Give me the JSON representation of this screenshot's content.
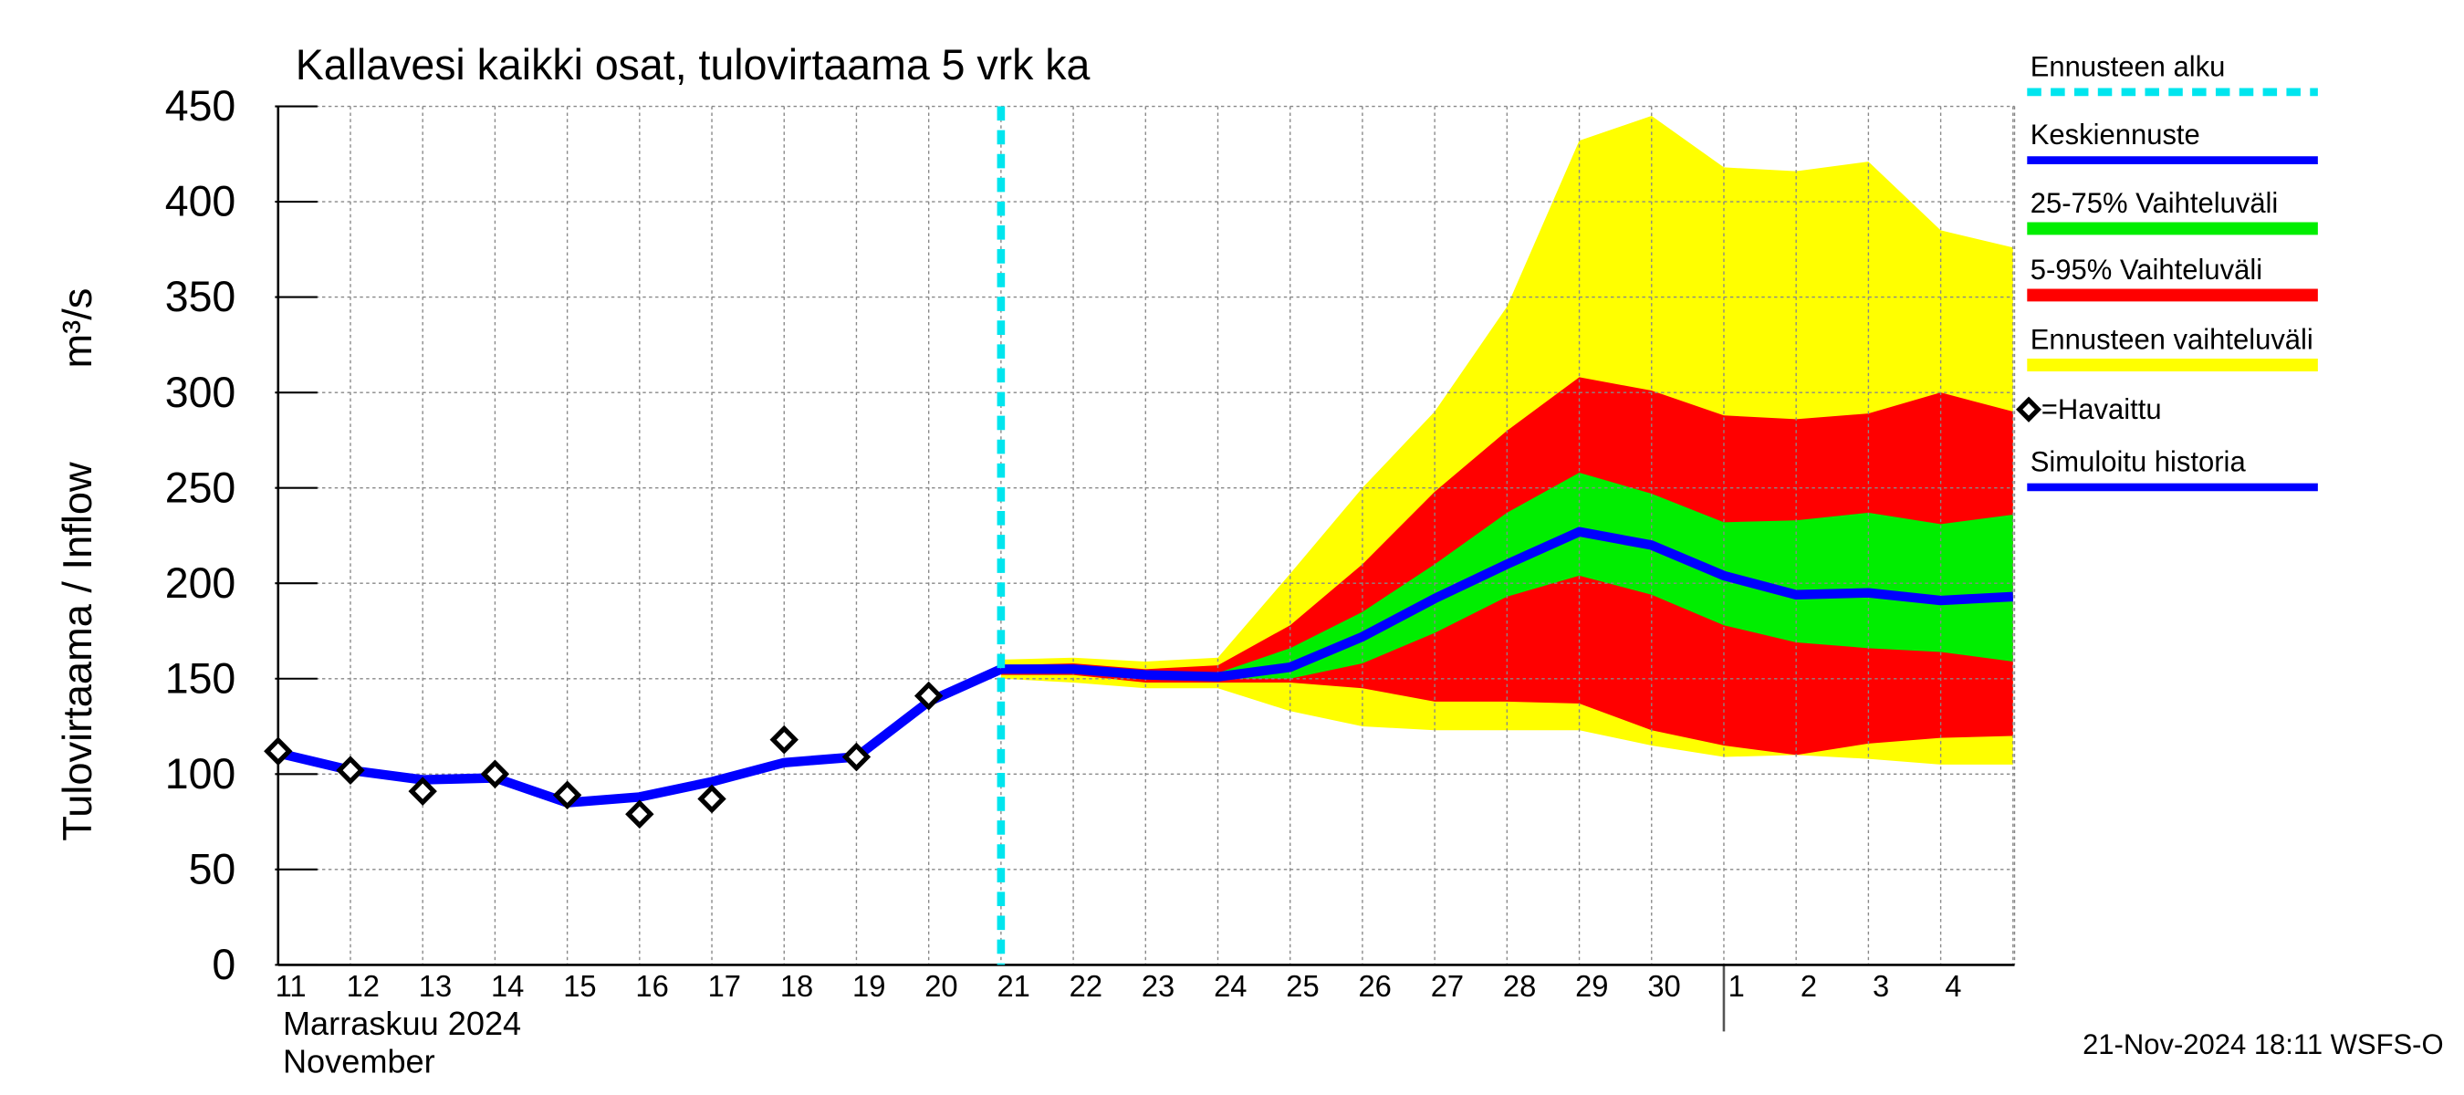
{
  "chart_data": {
    "type": "line",
    "title": "Kallavesi kaikki osat, tulovirtaama  5 vrk ka",
    "y_label": "Tulovirtaama / Inflow",
    "y_unit": "m³/s",
    "x_label_fi": "Marraskuu 2024",
    "x_label_en": "November",
    "footer": "21-Nov-2024 18:11 WSFS-O",
    "categories": [
      "11",
      "12",
      "13",
      "14",
      "15",
      "16",
      "17",
      "18",
      "19",
      "20",
      "21",
      "22",
      "23",
      "24",
      "25",
      "26",
      "27",
      "28",
      "29",
      "30",
      "1",
      "2",
      "3",
      "4",
      null
    ],
    "ylim": [
      0,
      450
    ],
    "yticks": [
      0,
      50,
      100,
      150,
      200,
      250,
      300,
      350,
      400,
      450
    ],
    "grid": true,
    "series": [
      {
        "name": "Ennusteen alku",
        "kind": "vline",
        "color": "#00e5ee",
        "x": 10
      },
      {
        "name": "Keskiennuste",
        "kind": "line",
        "color": "#0000ff",
        "values": [
          null,
          null,
          null,
          null,
          null,
          null,
          null,
          null,
          null,
          null,
          155,
          155,
          152,
          151,
          156,
          172,
          192,
          210,
          227,
          220,
          204,
          194,
          195,
          191,
          193
        ]
      },
      {
        "name": "25-75% Vaihteluväli",
        "kind": "band",
        "color": "#00ee00",
        "values": [
          null,
          null,
          null,
          null,
          null,
          null,
          null,
          null,
          null,
          null,
          156,
          156,
          153,
          153,
          166,
          185,
          210,
          237,
          258,
          247,
          232,
          233,
          237,
          231,
          236
        ],
        "lower": [
          null,
          null,
          null,
          null,
          null,
          null,
          null,
          null,
          null,
          null,
          154,
          154,
          150,
          150,
          150,
          158,
          174,
          193,
          204,
          194,
          178,
          169,
          166,
          164,
          159
        ]
      },
      {
        "name": "5-95% Vaihteluväli",
        "kind": "band",
        "color": "#ff0000",
        "values": [
          null,
          null,
          null,
          null,
          null,
          null,
          null,
          null,
          null,
          null,
          157,
          158,
          155,
          157,
          178,
          210,
          248,
          280,
          308,
          301,
          288,
          286,
          289,
          300,
          290
        ],
        "lower": [
          null,
          null,
          null,
          null,
          null,
          null,
          null,
          null,
          null,
          null,
          152,
          152,
          148,
          148,
          148,
          145,
          138,
          138,
          137,
          123,
          115,
          110,
          116,
          119,
          120
        ]
      },
      {
        "name": "Ennusteen vaihteluväli",
        "kind": "band",
        "color": "#ffff00",
        "values": [
          null,
          null,
          null,
          null,
          null,
          null,
          null,
          null,
          null,
          null,
          160,
          161,
          159,
          161,
          205,
          250,
          290,
          345,
          432,
          445,
          418,
          416,
          421,
          385,
          376
        ],
        "lower": [
          null,
          null,
          null,
          null,
          null,
          null,
          null,
          null,
          null,
          null,
          150,
          148,
          145,
          145,
          133,
          125,
          123,
          123,
          123,
          115,
          109,
          110,
          108,
          105,
          105
        ]
      },
      {
        "name": "=Havaittu",
        "kind": "markers",
        "color": "#000000",
        "values": [
          112,
          102,
          91,
          100,
          89,
          79,
          87,
          118,
          109,
          141,
          null,
          null,
          null,
          null,
          null,
          null,
          null,
          null,
          null,
          null,
          null,
          null,
          null,
          null,
          null
        ]
      },
      {
        "name": "Simuloitu historia",
        "kind": "line",
        "color": "#0000ff",
        "values": [
          111,
          102,
          97,
          98,
          85,
          88,
          96,
          106,
          109,
          138,
          155,
          null,
          null,
          null,
          null,
          null,
          null,
          null,
          null,
          null,
          null,
          null,
          null,
          null,
          null
        ]
      }
    ]
  }
}
